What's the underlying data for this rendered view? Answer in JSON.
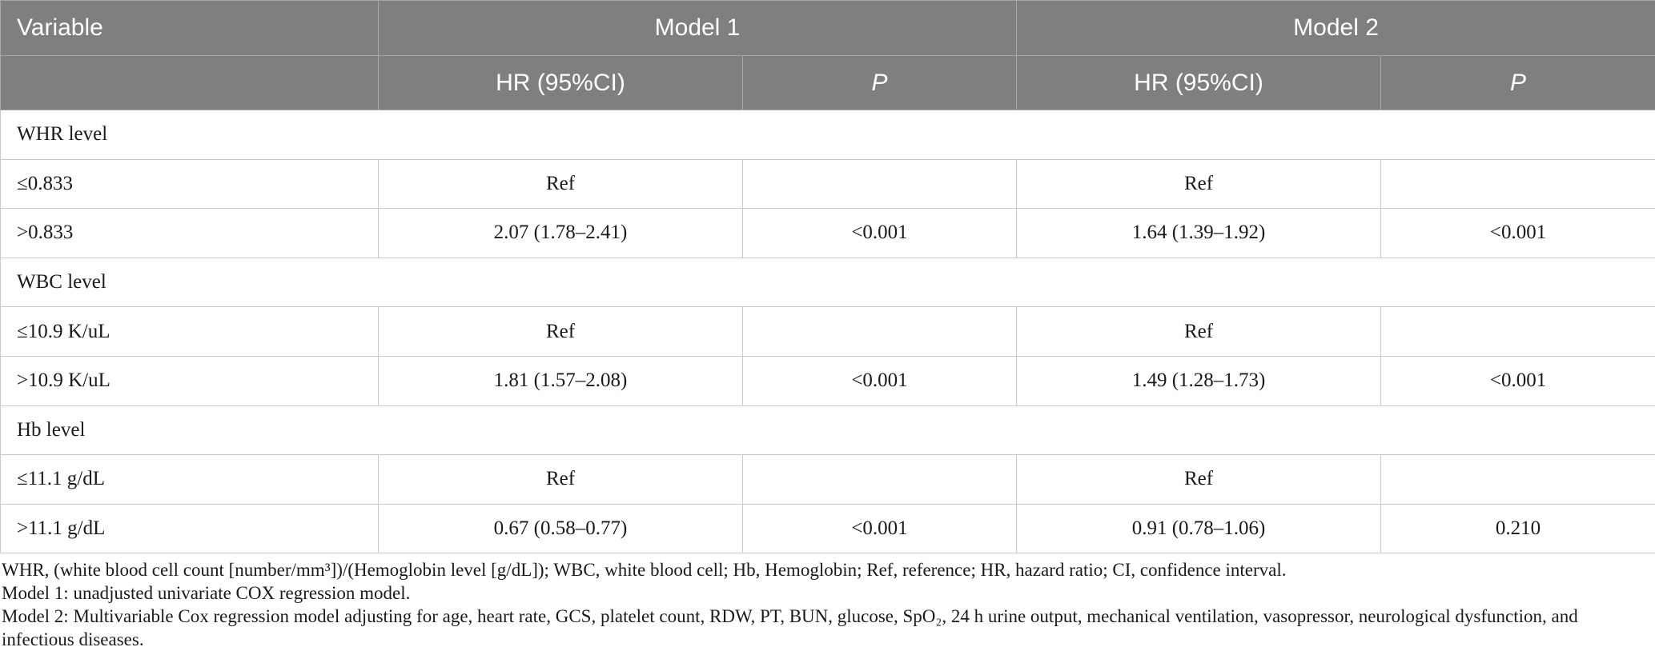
{
  "table": {
    "header": [
      "Variable",
      "Model 1",
      "Model 2"
    ],
    "subheader": [
      "HR (95%CI)",
      "P",
      "HR (95%CI)",
      "P"
    ],
    "rows": [
      {
        "group": "WHR level"
      },
      {
        "label": "≤0.833",
        "m1_hr": "Ref",
        "m2_hr": "Ref"
      },
      {
        "label": ">0.833",
        "m1_hr": "2.07 (1.78–2.41)",
        "m1_p": "<0.001",
        "m2_hr": "1.64 (1.39–1.92)",
        "m2_p": "<0.001"
      },
      {
        "group": "WBC level"
      },
      {
        "label": "≤10.9 K/uL",
        "m1_hr": "Ref",
        "m2_hr": "Ref"
      },
      {
        "label": ">10.9 K/uL",
        "m1_hr": "1.81 (1.57–2.08)",
        "m1_p": "<0.001",
        "m2_hr": "1.49 (1.28–1.73)",
        "m2_p": "<0.001"
      },
      {
        "group": "Hb level"
      },
      {
        "label": "≤11.1 g/dL",
        "m1_hr": "Ref",
        "m2_hr": "Ref"
      },
      {
        "label": ">11.1 g/dL",
        "m1_hr": "0.67 (0.58–0.77)",
        "m1_p": "<0.001",
        "m2_hr": "0.91 (0.78–1.06)",
        "m2_p": "0.210"
      }
    ]
  },
  "footnotes": [
    "WHR, (white blood cell count [number/mm³])/(Hemoglobin level [g/dL]); WBC, white blood cell; Hb, Hemoglobin; Ref, reference; HR, hazard ratio; CI, confidence interval.",
    "Model 1: unadjusted univariate COX regression model.",
    "Model 2: Multivariable Cox regression model adjusting for age, heart rate, GCS, platelet count, RDW, PT, BUN, glucose, SpO₂, 24 h urine output, mechanical ventilation, vasopressor, neurological dysfunction, and infectious diseases."
  ]
}
